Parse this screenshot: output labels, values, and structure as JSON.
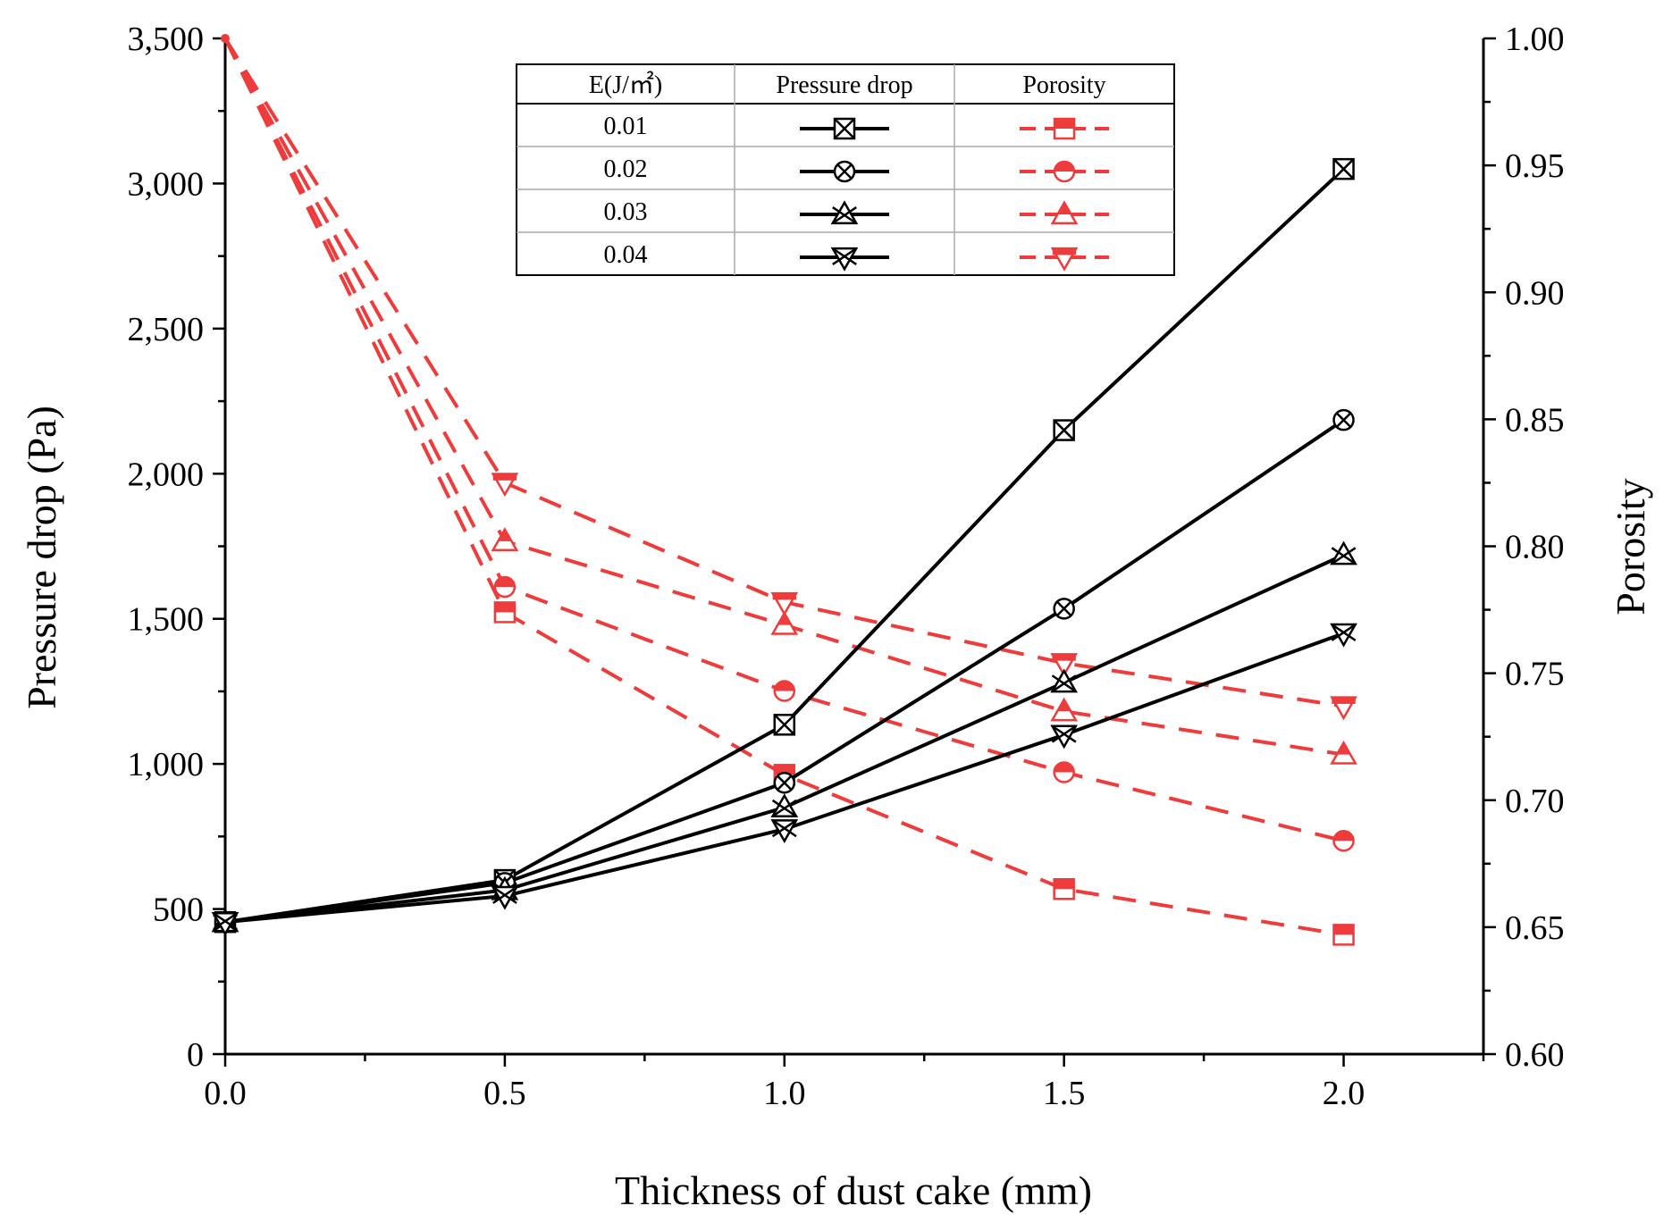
{
  "chart_data": {
    "type": "line",
    "x": [
      0.0,
      0.5,
      1.0,
      1.5,
      2.0
    ],
    "xlabel": "Thickness of dust cake (mm)",
    "ylabel_left": "Pressure drop (Pa)",
    "ylabel_right": "Porosity",
    "xlim": [
      0.0,
      2.25
    ],
    "ylim_left": [
      0,
      3500
    ],
    "ylim_right": [
      0.6,
      1.0
    ],
    "x_ticks": [
      "0.0",
      "0.5",
      "1.0",
      "1.5",
      "2.0"
    ],
    "y_left_ticks": [
      "0",
      "500",
      "1,000",
      "1,500",
      "2,000",
      "2,500",
      "3,000",
      "3,500"
    ],
    "y_right_ticks": [
      "0.60",
      "0.65",
      "0.70",
      "0.75",
      "0.80",
      "0.85",
      "0.90",
      "0.95",
      "1.00"
    ],
    "legend_headers": [
      "E(J/㎡)",
      "Pressure drop",
      "Porosity"
    ],
    "series": [
      {
        "energy": "0.01",
        "marker": "boxx",
        "pressure_drop": [
          455,
          600,
          1135,
          2150,
          3050
        ],
        "porosity": [
          1.0,
          0.774,
          0.71,
          0.665,
          0.647
        ]
      },
      {
        "energy": "0.02",
        "marker": "circlex",
        "pressure_drop": [
          455,
          590,
          935,
          1535,
          2185
        ],
        "porosity": [
          1.0,
          0.784,
          0.743,
          0.711,
          0.684
        ]
      },
      {
        "energy": "0.03",
        "marker": "triangle",
        "pressure_drop": [
          455,
          565,
          850,
          1280,
          1720
        ],
        "porosity": [
          1.0,
          0.802,
          0.769,
          0.735,
          0.718
        ]
      },
      {
        "energy": "0.04",
        "marker": "triangledown",
        "pressure_drop": [
          455,
          545,
          775,
          1100,
          1450
        ],
        "porosity": [
          1.0,
          0.825,
          0.778,
          0.754,
          0.737
        ]
      }
    ],
    "colors": {
      "pressure": "#000000",
      "porosity": "#ee3b3b"
    }
  }
}
